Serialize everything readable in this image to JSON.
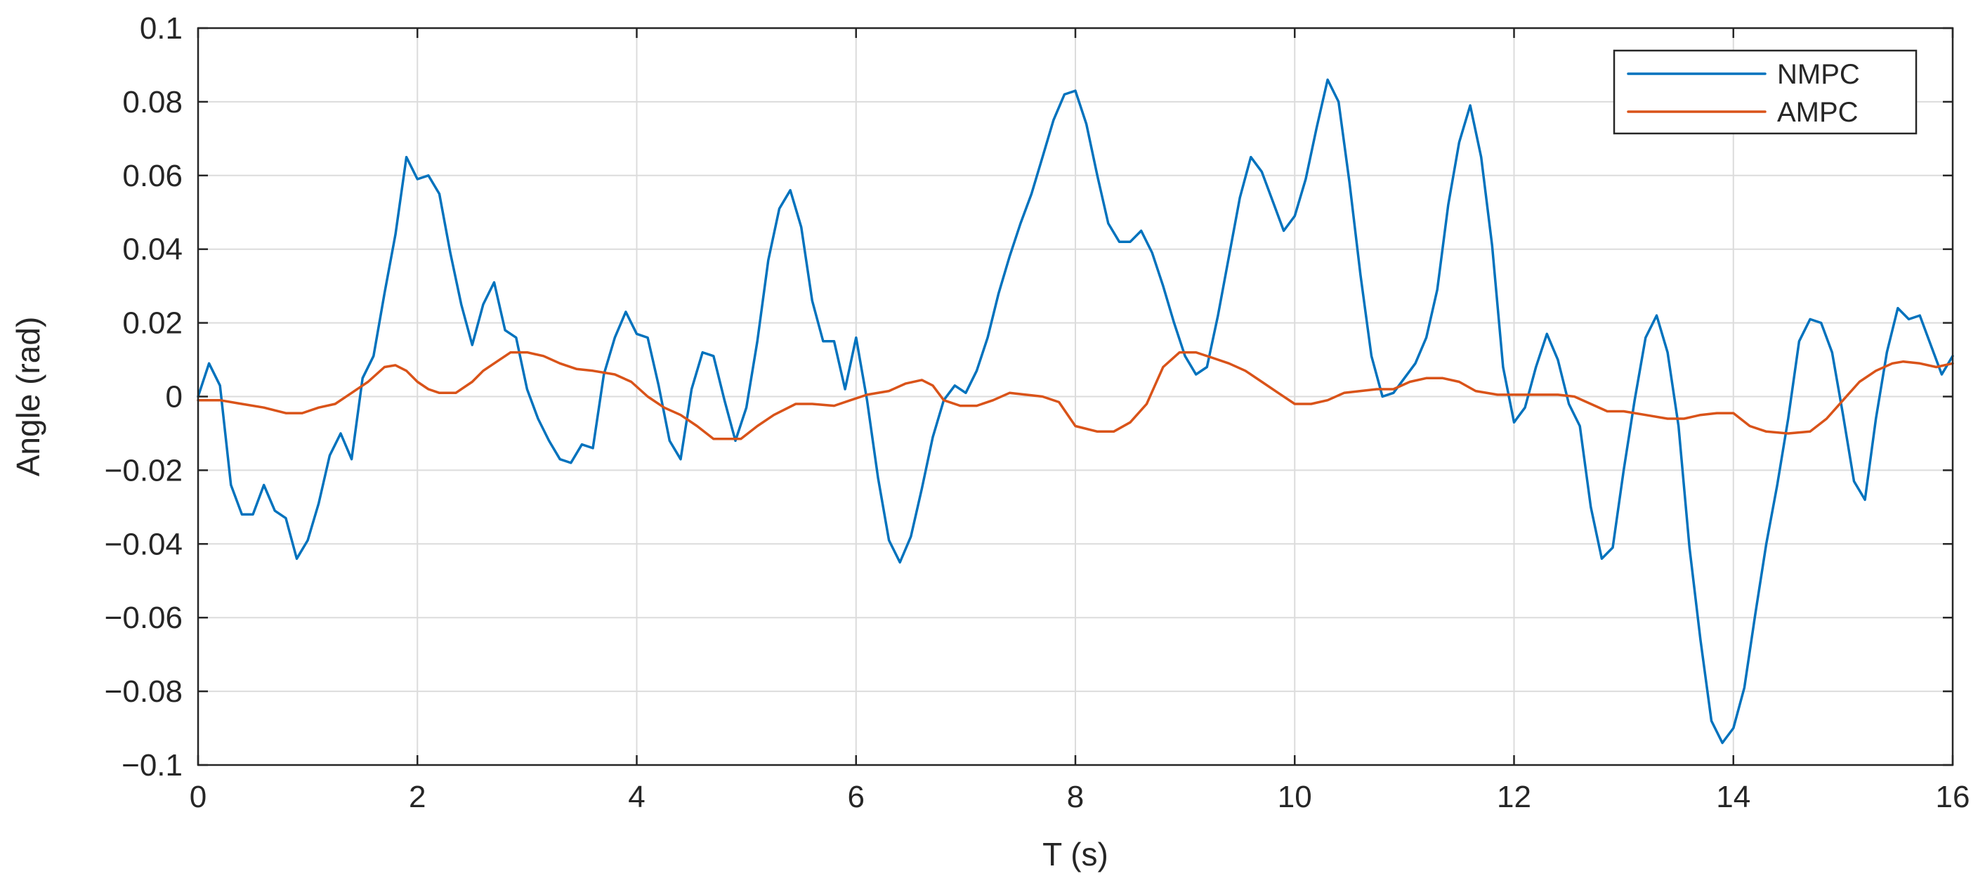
{
  "chart_data": {
    "type": "line",
    "title": "",
    "xlabel": "T (s)",
    "ylabel": "Angle (rad)",
    "xlim": [
      0,
      16
    ],
    "ylim": [
      -0.1,
      0.1
    ],
    "grid": true,
    "legend_position": "top-right",
    "x_ticks": [
      0,
      2,
      4,
      6,
      8,
      10,
      12,
      14,
      16
    ],
    "x_tick_labels": [
      "0",
      "2",
      "4",
      "6",
      "8",
      "10",
      "12",
      "14",
      "16"
    ],
    "y_ticks": [
      -0.1,
      -0.08,
      -0.06,
      -0.04,
      -0.02,
      0,
      0.02,
      0.04,
      0.06,
      0.08,
      0.1
    ],
    "y_tick_labels": [
      "−0.1",
      "−0.08",
      "−0.06",
      "−0.04",
      "−0.02",
      "0",
      "0.02",
      "0.04",
      "0.06",
      "0.08",
      "0.1"
    ],
    "series": [
      {
        "name": "NMPC",
        "color": "#0072BD",
        "points": [
          [
            0,
            0
          ],
          [
            0.1,
            0.009
          ],
          [
            0.2,
            0.003
          ],
          [
            0.3,
            -0.024
          ],
          [
            0.4,
            -0.032
          ],
          [
            0.5,
            -0.032
          ],
          [
            0.6,
            -0.024
          ],
          [
            0.7,
            -0.031
          ],
          [
            0.8,
            -0.033
          ],
          [
            0.9,
            -0.044
          ],
          [
            1.0,
            -0.039
          ],
          [
            1.1,
            -0.029
          ],
          [
            1.2,
            -0.016
          ],
          [
            1.3,
            -0.01
          ],
          [
            1.4,
            -0.017
          ],
          [
            1.5,
            0.005
          ],
          [
            1.6,
            0.011
          ],
          [
            1.7,
            0.028
          ],
          [
            1.8,
            0.044
          ],
          [
            1.9,
            0.065
          ],
          [
            2.0,
            0.059
          ],
          [
            2.1,
            0.06
          ],
          [
            2.2,
            0.055
          ],
          [
            2.3,
            0.039
          ],
          [
            2.4,
            0.025
          ],
          [
            2.5,
            0.014
          ],
          [
            2.6,
            0.025
          ],
          [
            2.7,
            0.031
          ],
          [
            2.8,
            0.018
          ],
          [
            2.9,
            0.016
          ],
          [
            3.0,
            0.002
          ],
          [
            3.1,
            -0.006
          ],
          [
            3.2,
            -0.012
          ],
          [
            3.3,
            -0.017
          ],
          [
            3.4,
            -0.018
          ],
          [
            3.5,
            -0.013
          ],
          [
            3.6,
            -0.014
          ],
          [
            3.7,
            0.006
          ],
          [
            3.8,
            0.016
          ],
          [
            3.9,
            0.023
          ],
          [
            4.0,
            0.017
          ],
          [
            4.1,
            0.016
          ],
          [
            4.2,
            0.003
          ],
          [
            4.3,
            -0.012
          ],
          [
            4.4,
            -0.017
          ],
          [
            4.5,
            0.002
          ],
          [
            4.6,
            0.012
          ],
          [
            4.7,
            0.011
          ],
          [
            4.8,
            -0.001
          ],
          [
            4.9,
            -0.012
          ],
          [
            5.0,
            -0.003
          ],
          [
            5.1,
            0.015
          ],
          [
            5.2,
            0.037
          ],
          [
            5.3,
            0.051
          ],
          [
            5.4,
            0.056
          ],
          [
            5.5,
            0.046
          ],
          [
            5.6,
            0.026
          ],
          [
            5.7,
            0.015
          ],
          [
            5.8,
            0.015
          ],
          [
            5.9,
            0.002
          ],
          [
            6.0,
            0.016
          ],
          [
            6.1,
            -0.001
          ],
          [
            6.2,
            -0.022
          ],
          [
            6.3,
            -0.039
          ],
          [
            6.4,
            -0.045
          ],
          [
            6.5,
            -0.038
          ],
          [
            6.6,
            -0.025
          ],
          [
            6.7,
            -0.011
          ],
          [
            6.8,
            -0.001
          ],
          [
            6.9,
            0.003
          ],
          [
            7.0,
            0.001
          ],
          [
            7.1,
            0.007
          ],
          [
            7.2,
            0.016
          ],
          [
            7.3,
            0.028
          ],
          [
            7.4,
            0.038
          ],
          [
            7.5,
            0.047
          ],
          [
            7.6,
            0.055
          ],
          [
            7.7,
            0.065
          ],
          [
            7.8,
            0.075
          ],
          [
            7.9,
            0.082
          ],
          [
            8.0,
            0.083
          ],
          [
            8.1,
            0.074
          ],
          [
            8.2,
            0.06
          ],
          [
            8.3,
            0.047
          ],
          [
            8.4,
            0.042
          ],
          [
            8.5,
            0.042
          ],
          [
            8.6,
            0.045
          ],
          [
            8.7,
            0.039
          ],
          [
            8.8,
            0.03
          ],
          [
            8.9,
            0.02
          ],
          [
            9.0,
            0.011
          ],
          [
            9.1,
            0.006
          ],
          [
            9.2,
            0.008
          ],
          [
            9.3,
            0.022
          ],
          [
            9.4,
            0.038
          ],
          [
            9.5,
            0.054
          ],
          [
            9.6,
            0.065
          ],
          [
            9.7,
            0.061
          ],
          [
            9.8,
            0.053
          ],
          [
            9.9,
            0.045
          ],
          [
            10.0,
            0.049
          ],
          [
            10.1,
            0.059
          ],
          [
            10.2,
            0.073
          ],
          [
            10.3,
            0.086
          ],
          [
            10.4,
            0.08
          ],
          [
            10.5,
            0.058
          ],
          [
            10.6,
            0.033
          ],
          [
            10.7,
            0.011
          ],
          [
            10.8,
            0.0
          ],
          [
            10.9,
            0.001
          ],
          [
            11.0,
            0.005
          ],
          [
            11.1,
            0.009
          ],
          [
            11.2,
            0.016
          ],
          [
            11.3,
            0.029
          ],
          [
            11.4,
            0.052
          ],
          [
            11.5,
            0.069
          ],
          [
            11.6,
            0.079
          ],
          [
            11.7,
            0.065
          ],
          [
            11.8,
            0.041
          ],
          [
            11.9,
            0.008
          ],
          [
            12.0,
            -0.007
          ],
          [
            12.1,
            -0.003
          ],
          [
            12.2,
            0.008
          ],
          [
            12.3,
            0.017
          ],
          [
            12.4,
            0.01
          ],
          [
            12.5,
            -0.002
          ],
          [
            12.6,
            -0.008
          ],
          [
            12.7,
            -0.03
          ],
          [
            12.8,
            -0.044
          ],
          [
            12.9,
            -0.041
          ],
          [
            13.0,
            -0.02
          ],
          [
            13.1,
            -0.001
          ],
          [
            13.2,
            0.016
          ],
          [
            13.3,
            0.022
          ],
          [
            13.4,
            0.012
          ],
          [
            13.5,
            -0.008
          ],
          [
            13.6,
            -0.041
          ],
          [
            13.7,
            -0.066
          ],
          [
            13.8,
            -0.088
          ],
          [
            13.9,
            -0.094
          ],
          [
            14.0,
            -0.09
          ],
          [
            14.1,
            -0.079
          ],
          [
            14.2,
            -0.059
          ],
          [
            14.3,
            -0.04
          ],
          [
            14.4,
            -0.024
          ],
          [
            14.5,
            -0.006
          ],
          [
            14.6,
            0.015
          ],
          [
            14.7,
            0.021
          ],
          [
            14.8,
            0.02
          ],
          [
            14.9,
            0.012
          ],
          [
            15.0,
            -0.005
          ],
          [
            15.1,
            -0.023
          ],
          [
            15.2,
            -0.028
          ],
          [
            15.3,
            -0.006
          ],
          [
            15.4,
            0.012
          ],
          [
            15.5,
            0.024
          ],
          [
            15.6,
            0.021
          ],
          [
            15.7,
            0.022
          ],
          [
            15.8,
            0.014
          ],
          [
            15.9,
            0.006
          ],
          [
            16.0,
            0.011
          ]
        ]
      },
      {
        "name": "AMPC",
        "color": "#D95319",
        "points": [
          [
            0,
            -0.001
          ],
          [
            0.2,
            -0.001
          ],
          [
            0.4,
            -0.002
          ],
          [
            0.6,
            -0.003
          ],
          [
            0.8,
            -0.0045
          ],
          [
            0.95,
            -0.0045
          ],
          [
            1.1,
            -0.003
          ],
          [
            1.25,
            -0.002
          ],
          [
            1.4,
            0.001
          ],
          [
            1.55,
            0.004
          ],
          [
            1.7,
            0.008
          ],
          [
            1.8,
            0.0085
          ],
          [
            1.9,
            0.007
          ],
          [
            2.0,
            0.004
          ],
          [
            2.1,
            0.002
          ],
          [
            2.2,
            0.001
          ],
          [
            2.35,
            0.001
          ],
          [
            2.5,
            0.004
          ],
          [
            2.6,
            0.007
          ],
          [
            2.75,
            0.01
          ],
          [
            2.85,
            0.012
          ],
          [
            3.0,
            0.012
          ],
          [
            3.15,
            0.011
          ],
          [
            3.3,
            0.009
          ],
          [
            3.45,
            0.0075
          ],
          [
            3.6,
            0.007
          ],
          [
            3.8,
            0.006
          ],
          [
            3.95,
            0.004
          ],
          [
            4.1,
            0.0
          ],
          [
            4.25,
            -0.003
          ],
          [
            4.4,
            -0.005
          ],
          [
            4.55,
            -0.008
          ],
          [
            4.7,
            -0.0115
          ],
          [
            4.95,
            -0.0115
          ],
          [
            5.1,
            -0.008
          ],
          [
            5.25,
            -0.005
          ],
          [
            5.45,
            -0.002
          ],
          [
            5.6,
            -0.002
          ],
          [
            5.8,
            -0.0025
          ],
          [
            5.95,
            -0.001
          ],
          [
            6.1,
            0.0005
          ],
          [
            6.3,
            0.0015
          ],
          [
            6.45,
            0.0035
          ],
          [
            6.6,
            0.0045
          ],
          [
            6.7,
            0.003
          ],
          [
            6.8,
            -0.001
          ],
          [
            6.95,
            -0.0025
          ],
          [
            7.1,
            -0.0025
          ],
          [
            7.25,
            -0.001
          ],
          [
            7.4,
            0.001
          ],
          [
            7.55,
            0.0005
          ],
          [
            7.7,
            0.0
          ],
          [
            7.85,
            -0.0015
          ],
          [
            8.0,
            -0.008
          ],
          [
            8.2,
            -0.0095
          ],
          [
            8.35,
            -0.0095
          ],
          [
            8.5,
            -0.007
          ],
          [
            8.65,
            -0.002
          ],
          [
            8.8,
            0.008
          ],
          [
            8.95,
            0.012
          ],
          [
            9.1,
            0.012
          ],
          [
            9.25,
            0.0105
          ],
          [
            9.4,
            0.009
          ],
          [
            9.55,
            0.007
          ],
          [
            9.7,
            0.004
          ],
          [
            9.85,
            0.001
          ],
          [
            10.0,
            -0.002
          ],
          [
            10.15,
            -0.002
          ],
          [
            10.3,
            -0.001
          ],
          [
            10.45,
            0.001
          ],
          [
            10.6,
            0.0015
          ],
          [
            10.75,
            0.002
          ],
          [
            10.9,
            0.002
          ],
          [
            11.05,
            0.004
          ],
          [
            11.2,
            0.005
          ],
          [
            11.35,
            0.005
          ],
          [
            11.5,
            0.004
          ],
          [
            11.65,
            0.0015
          ],
          [
            11.85,
            0.0005
          ],
          [
            12.0,
            0.0005
          ],
          [
            12.4,
            0.0005
          ],
          [
            12.55,
            0.0
          ],
          [
            12.7,
            -0.002
          ],
          [
            12.85,
            -0.004
          ],
          [
            13.0,
            -0.004
          ],
          [
            13.2,
            -0.005
          ],
          [
            13.4,
            -0.006
          ],
          [
            13.55,
            -0.006
          ],
          [
            13.7,
            -0.005
          ],
          [
            13.85,
            -0.0045
          ],
          [
            14.0,
            -0.0045
          ],
          [
            14.15,
            -0.008
          ],
          [
            14.3,
            -0.0095
          ],
          [
            14.5,
            -0.01
          ],
          [
            14.7,
            -0.0095
          ],
          [
            14.85,
            -0.006
          ],
          [
            15.0,
            -0.001
          ],
          [
            15.15,
            0.004
          ],
          [
            15.3,
            0.007
          ],
          [
            15.45,
            0.009
          ],
          [
            15.55,
            0.0095
          ],
          [
            15.7,
            0.009
          ],
          [
            15.85,
            0.008
          ],
          [
            16.0,
            0.009
          ]
        ]
      }
    ]
  }
}
